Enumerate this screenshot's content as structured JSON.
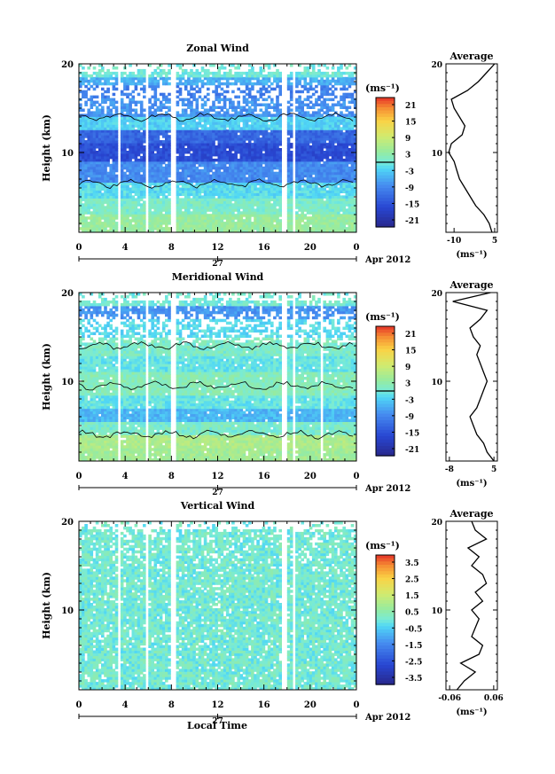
{
  "figure": {
    "date_label": "Apr 2012",
    "day_label": "27",
    "xlabel": "Local Time",
    "x_ticks": [
      "0",
      "4",
      "8",
      "12",
      "16",
      "20",
      "0"
    ],
    "colorbar_unit_label": "(ms⁻¹)",
    "profile_title": "Average",
    "profile_unit_label": "(ms⁻¹)",
    "ylabel": "Height (km)",
    "y_ticks": [
      "10",
      "20"
    ]
  },
  "chart_data": [
    {
      "type": "heatmap",
      "title": "Zonal Wind",
      "xlabel": "",
      "ylabel": "Height (km)",
      "xlim": [
        0,
        24
      ],
      "ylim": [
        1,
        20
      ],
      "colorbar": {
        "ticks": [
          "21",
          "15",
          "9",
          "3",
          "-3",
          "-9",
          "-15",
          "-21"
        ],
        "range": [
          -24,
          24
        ],
        "zero_line": 0
      },
      "profile": {
        "title": "Average",
        "xlim": [
          -13,
          6
        ],
        "x_ticks": [
          "-10",
          "5"
        ],
        "heights": [
          1,
          2,
          3,
          4,
          5,
          6,
          7,
          8,
          9,
          10,
          11,
          12,
          13,
          14,
          15,
          16,
          17,
          18,
          19,
          20
        ],
        "values": [
          4,
          3,
          1,
          -2,
          -4,
          -6,
          -8,
          -9,
          -10,
          -12,
          -11,
          -7,
          -6,
          -8,
          -10,
          -11,
          -5,
          -1,
          2,
          5
        ]
      },
      "pattern": {
        "shear_heights": [
          6.5,
          14
        ],
        "max_speed": 22
      },
      "gaps": [
        [
          3.3,
          3.6
        ],
        [
          5.7,
          6.1
        ],
        [
          8.0,
          8.4
        ],
        [
          17.6,
          17.9
        ],
        [
          18.5,
          18.8
        ]
      ]
    },
    {
      "type": "heatmap",
      "title": "Meridional Wind",
      "xlabel": "",
      "ylabel": "Height (km)",
      "xlim": [
        0,
        24
      ],
      "ylim": [
        1,
        20
      ],
      "colorbar": {
        "ticks": [
          "21",
          "15",
          "9",
          "3",
          "-3",
          "-9",
          "-15",
          "-21"
        ],
        "range": [
          -24,
          24
        ],
        "zero_line": 0
      },
      "profile": {
        "title": "Average",
        "xlim": [
          -9,
          6
        ],
        "x_ticks": [
          "-8",
          "5"
        ],
        "heights": [
          1,
          2,
          3,
          4,
          5,
          6,
          7,
          8,
          9,
          10,
          11,
          12,
          13,
          14,
          15,
          16,
          17,
          18,
          19,
          20
        ],
        "values": [
          5,
          3,
          2,
          0,
          -1,
          -2,
          0,
          1,
          2,
          3,
          2,
          1,
          0,
          1,
          -1,
          -2,
          1,
          3,
          -7,
          4
        ]
      },
      "pattern": {
        "shear_heights": [
          4,
          9.5,
          14
        ],
        "max_speed": 10
      },
      "gaps": [
        [
          3.3,
          3.6
        ],
        [
          5.7,
          6.1
        ],
        [
          8.0,
          8.4
        ],
        [
          17.6,
          17.9
        ],
        [
          18.5,
          18.8
        ],
        [
          21.0,
          21.2
        ]
      ]
    },
    {
      "type": "heatmap",
      "title": "Vertical Wind",
      "xlabel": "Local Time",
      "ylabel": "Height (km)",
      "xlim": [
        0,
        24
      ],
      "ylim": [
        1,
        20
      ],
      "colorbar": {
        "ticks": [
          "3.5",
          "2.5",
          "1.5",
          "0.5",
          "-0.5",
          "-1.5",
          "-2.5",
          "-3.5"
        ],
        "range": [
          -4,
          4
        ],
        "zero_line": null
      },
      "profile": {
        "title": "Average",
        "xlim": [
          -0.07,
          0.07
        ],
        "x_ticks": [
          "-0.06",
          "0.06"
        ],
        "heights": [
          1,
          2,
          3,
          4,
          5,
          6,
          7,
          8,
          9,
          10,
          11,
          12,
          13,
          14,
          15,
          16,
          17,
          18,
          19,
          20
        ],
        "values": [
          -0.04,
          -0.02,
          0.01,
          -0.03,
          0.02,
          0.03,
          0.0,
          0.01,
          0.02,
          0.0,
          0.03,
          0.01,
          0.04,
          0.03,
          0.0,
          0.02,
          -0.01,
          0.04,
          0.01,
          0.0
        ]
      },
      "pattern": {
        "shear_heights": [],
        "max_speed": 0.6
      },
      "gaps": [
        [
          3.3,
          3.6
        ],
        [
          5.7,
          6.1
        ],
        [
          8.0,
          8.4
        ],
        [
          17.6,
          17.9
        ],
        [
          18.5,
          18.8
        ]
      ]
    }
  ]
}
